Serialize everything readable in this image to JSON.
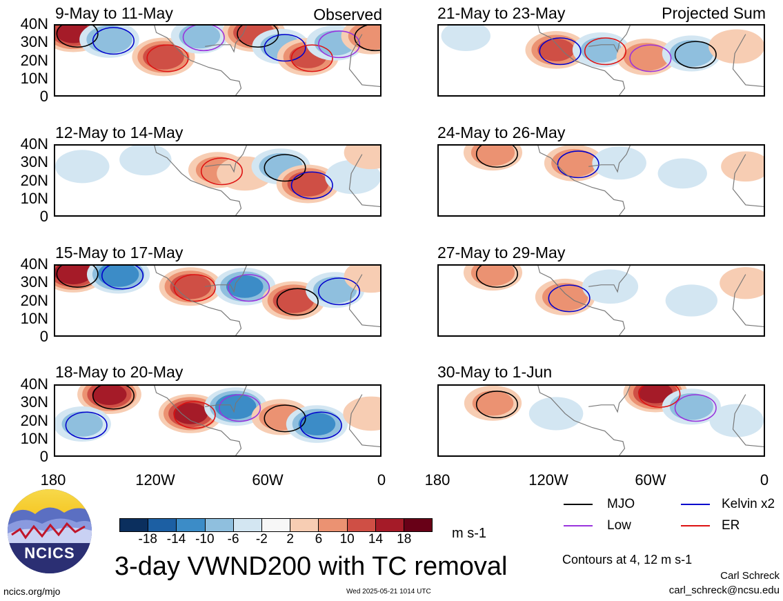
{
  "panels_left": [
    {
      "title": "9-May to 11-May",
      "corner": "Observed"
    },
    {
      "title": "12-May to 14-May",
      "corner": ""
    },
    {
      "title": "15-May to 17-May",
      "corner": ""
    },
    {
      "title": "18-May to 20-May",
      "corner": ""
    }
  ],
  "panels_right": [
    {
      "title": "21-May to 23-May",
      "corner": "Projected Sum"
    },
    {
      "title": "24-May to 26-May",
      "corner": ""
    },
    {
      "title": "27-May to 29-May",
      "corner": ""
    },
    {
      "title": "30-May to 1-Jun",
      "corner": ""
    }
  ],
  "y_ticks": [
    "40N",
    "30N",
    "20N",
    "10N",
    "0"
  ],
  "x_ticks": [
    "180",
    "120W",
    "60W",
    "0"
  ],
  "legend": {
    "mjo": "MJO",
    "kelvin": "Kelvin x2",
    "low": "Low",
    "er": "ER",
    "colors": {
      "mjo": "#000000",
      "kelvin": "#0000cc",
      "low": "#9933dd",
      "er": "#dd1111"
    }
  },
  "colorbar": {
    "ticks": [
      "-18",
      "-14",
      "-10",
      "-6",
      "-2",
      "2",
      "6",
      "10",
      "14",
      "18"
    ],
    "colors": [
      "#0b2f5e",
      "#1c5fa3",
      "#3c8cc7",
      "#8fbfde",
      "#d3e6f2",
      "#f7f7f7",
      "#f7cdb3",
      "#eb9272",
      "#cf4f45",
      "#a51b28",
      "#680017"
    ],
    "units": "m s-1"
  },
  "title": "3-day VWND200 with TC removal",
  "contour_note": "Contours at 4, 12 m s-1",
  "author": "Carl Schreck",
  "email": "carl_schreck@ncsu.edu",
  "site": "ncics.org/mjo",
  "timestamp": "Wed 2025-05-21 1014 UTC",
  "logo_text": "NCICS",
  "chart_data": {
    "type": "heatmap",
    "title": "3-day VWND200 with TC removal",
    "xlabel": "",
    "ylabel": "",
    "x_ticks": [
      "180",
      "120W",
      "60W",
      "0"
    ],
    "y_ticks": [
      "40N",
      "30N",
      "20N",
      "10N",
      "0"
    ],
    "xlim_lon": [
      -180,
      0
    ],
    "ylim_lat": [
      0,
      40
    ],
    "units": "m s-1",
    "color_levels": [
      -18,
      -14,
      -10,
      -6,
      -2,
      2,
      6,
      10,
      14,
      18
    ],
    "contour_levels": [
      4,
      12
    ],
    "legend_entries": [
      "MJO",
      "Kelvin x2",
      "Low",
      "ER"
    ],
    "panels": [
      {
        "title": "9-May to 11-May",
        "label": "Observed",
        "blobs": [
          {
            "lon": -170,
            "lat": 36,
            "v": 16
          },
          {
            "lon": -150,
            "lat": 32,
            "v": -10
          },
          {
            "lon": -120,
            "lat": 22,
            "v": 14
          },
          {
            "lon": -100,
            "lat": 34,
            "v": -8
          },
          {
            "lon": -70,
            "lat": 36,
            "v": 14
          },
          {
            "lon": -55,
            "lat": 28,
            "v": -8
          },
          {
            "lon": -40,
            "lat": 22,
            "v": 12
          },
          {
            "lon": -25,
            "lat": 30,
            "v": -8
          },
          {
            "lon": -5,
            "lat": 34,
            "v": 10
          }
        ]
      },
      {
        "title": "12-May to 14-May",
        "label": "",
        "blobs": [
          {
            "lon": -165,
            "lat": 28,
            "v": -6
          },
          {
            "lon": -130,
            "lat": 32,
            "v": -5
          },
          {
            "lon": -90,
            "lat": 26,
            "v": 9
          },
          {
            "lon": -75,
            "lat": 24,
            "v": 7
          },
          {
            "lon": -55,
            "lat": 28,
            "v": -9
          },
          {
            "lon": -40,
            "lat": 18,
            "v": 14
          },
          {
            "lon": -15,
            "lat": 22,
            "v": -7
          },
          {
            "lon": -5,
            "lat": 36,
            "v": 6
          }
        ]
      },
      {
        "title": "15-May to 17-May",
        "label": "",
        "blobs": [
          {
            "lon": -170,
            "lat": 36,
            "v": 18
          },
          {
            "lon": -145,
            "lat": 35,
            "v": -14
          },
          {
            "lon": -105,
            "lat": 28,
            "v": 14
          },
          {
            "lon": -75,
            "lat": 28,
            "v": -12
          },
          {
            "lon": -48,
            "lat": 20,
            "v": 14
          },
          {
            "lon": -25,
            "lat": 26,
            "v": -9
          },
          {
            "lon": -5,
            "lat": 34,
            "v": 6
          }
        ]
      },
      {
        "title": "18-May to 20-May",
        "label": "",
        "blobs": [
          {
            "lon": -150,
            "lat": 35,
            "v": 16
          },
          {
            "lon": -165,
            "lat": 18,
            "v": -8
          },
          {
            "lon": -105,
            "lat": 24,
            "v": 16
          },
          {
            "lon": -80,
            "lat": 28,
            "v": -14
          },
          {
            "lon": -55,
            "lat": 22,
            "v": 9
          },
          {
            "lon": -35,
            "lat": 18,
            "v": -12
          },
          {
            "lon": -5,
            "lat": 24,
            "v": 7
          }
        ]
      },
      {
        "title": "21-May to 23-May",
        "label": "Projected Sum",
        "blobs": [
          {
            "lon": -165,
            "lat": 34,
            "v": -4
          },
          {
            "lon": -115,
            "lat": 26,
            "v": 12
          },
          {
            "lon": -90,
            "lat": 26,
            "v": -8
          },
          {
            "lon": -65,
            "lat": 22,
            "v": 10
          },
          {
            "lon": -40,
            "lat": 24,
            "v": -9
          },
          {
            "lon": -15,
            "lat": 28,
            "v": 7
          }
        ]
      },
      {
        "title": "24-May to 26-May",
        "label": "",
        "blobs": [
          {
            "lon": -150,
            "lat": 36,
            "v": 9
          },
          {
            "lon": -105,
            "lat": 30,
            "v": 10
          },
          {
            "lon": -80,
            "lat": 30,
            "v": -6
          },
          {
            "lon": -45,
            "lat": 24,
            "v": -4
          },
          {
            "lon": -10,
            "lat": 28,
            "v": 4
          }
        ]
      },
      {
        "title": "27-May to 29-May",
        "label": "",
        "blobs": [
          {
            "lon": -150,
            "lat": 36,
            "v": 9
          },
          {
            "lon": -110,
            "lat": 22,
            "v": 10
          },
          {
            "lon": -85,
            "lat": 28,
            "v": -7
          },
          {
            "lon": -40,
            "lat": 20,
            "v": -5
          },
          {
            "lon": -10,
            "lat": 30,
            "v": 5
          }
        ]
      },
      {
        "title": "30-May to 1-Jun",
        "label": "",
        "blobs": [
          {
            "lon": -150,
            "lat": 30,
            "v": 8
          },
          {
            "lon": -115,
            "lat": 24,
            "v": -6
          },
          {
            "lon": -60,
            "lat": 36,
            "v": 16
          },
          {
            "lon": -40,
            "lat": 28,
            "v": -9
          },
          {
            "lon": -15,
            "lat": 20,
            "v": -6
          }
        ]
      }
    ]
  }
}
